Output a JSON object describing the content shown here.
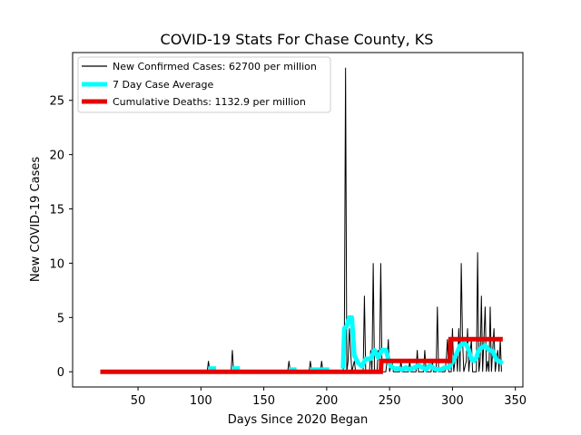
{
  "chart_data": {
    "type": "line",
    "title": "COVID-19 Stats For Chase County, KS",
    "xlabel": "Days Since 2020 Began",
    "ylabel": "New COVID-19 Cases",
    "xlim": [
      -2,
      356
    ],
    "ylim": [
      -1.4,
      29.4
    ],
    "xticks": [
      50,
      100,
      150,
      200,
      250,
      300,
      350
    ],
    "yticks": [
      0,
      5,
      10,
      15,
      20,
      25
    ],
    "grid": false,
    "legend_position": "top-left",
    "series": [
      {
        "name": "New Confirmed Cases: 62700 per million",
        "color": "#000000",
        "style": "thin",
        "points": [
          [
            20,
            0
          ],
          [
            105,
            0
          ],
          [
            106,
            1
          ],
          [
            107,
            0
          ],
          [
            124,
            0
          ],
          [
            125,
            2
          ],
          [
            126,
            0
          ],
          [
            169,
            0
          ],
          [
            170,
            1
          ],
          [
            171,
            0
          ],
          [
            186,
            0
          ],
          [
            187,
            1
          ],
          [
            188,
            0
          ],
          [
            195,
            0
          ],
          [
            196,
            1
          ],
          [
            197,
            0
          ],
          [
            213,
            0
          ],
          [
            214,
            2
          ],
          [
            215,
            28
          ],
          [
            216,
            0
          ],
          [
            217,
            1
          ],
          [
            218,
            4
          ],
          [
            219,
            2
          ],
          [
            220,
            0
          ],
          [
            222,
            1
          ],
          [
            223,
            0
          ],
          [
            229,
            0
          ],
          [
            230,
            7
          ],
          [
            231,
            0
          ],
          [
            234,
            0
          ],
          [
            235,
            2
          ],
          [
            236,
            0
          ],
          [
            237,
            10
          ],
          [
            238,
            0
          ],
          [
            240,
            0
          ],
          [
            241,
            2
          ],
          [
            242,
            1
          ],
          [
            243,
            10
          ],
          [
            244,
            0
          ],
          [
            247,
            0
          ],
          [
            248,
            1
          ],
          [
            249,
            3
          ],
          [
            250,
            0
          ],
          [
            252,
            1
          ],
          [
            253,
            0
          ],
          [
            258,
            0
          ],
          [
            259,
            1
          ],
          [
            260,
            0
          ],
          [
            265,
            0
          ],
          [
            266,
            1
          ],
          [
            267,
            0
          ],
          [
            271,
            0
          ],
          [
            272,
            2
          ],
          [
            273,
            0
          ],
          [
            277,
            0
          ],
          [
            278,
            2
          ],
          [
            279,
            0
          ],
          [
            283,
            0
          ],
          [
            284,
            1
          ],
          [
            285,
            0
          ],
          [
            287,
            0
          ],
          [
            288,
            6
          ],
          [
            289,
            0
          ],
          [
            294,
            0
          ],
          [
            295,
            1
          ],
          [
            296,
            3
          ],
          [
            297,
            0
          ],
          [
            299,
            0
          ],
          [
            300,
            4
          ],
          [
            301,
            0
          ],
          [
            303,
            2
          ],
          [
            304,
            0
          ],
          [
            305,
            4
          ],
          [
            306,
            0
          ],
          [
            307,
            10
          ],
          [
            308,
            3
          ],
          [
            309,
            0
          ],
          [
            311,
            1
          ],
          [
            312,
            4
          ],
          [
            313,
            0
          ],
          [
            315,
            3
          ],
          [
            316,
            0
          ],
          [
            319,
            0
          ],
          [
            320,
            11
          ],
          [
            321,
            0
          ],
          [
            322,
            1
          ],
          [
            323,
            7
          ],
          [
            324,
            0
          ],
          [
            326,
            6
          ],
          [
            327,
            0
          ],
          [
            328,
            1
          ],
          [
            329,
            0
          ],
          [
            330,
            6
          ],
          [
            331,
            0
          ],
          [
            333,
            4
          ],
          [
            334,
            0
          ],
          [
            336,
            2
          ],
          [
            337,
            0
          ],
          [
            338,
            3
          ],
          [
            339,
            0
          ]
        ]
      },
      {
        "name": "7 Day Case Average",
        "color": "#00ffff",
        "style": "thick",
        "segments": [
          [
            [
              106,
              0.3
            ],
            [
              112,
              0.3
            ]
          ],
          [
            [
              125,
              0.3
            ],
            [
              131,
              0.3
            ]
          ],
          [
            [
              170,
              0.2
            ],
            [
              176,
              0.2
            ]
          ],
          [
            [
              187,
              0.2
            ],
            [
              202,
              0.2
            ]
          ],
          [
            [
              213,
              0.3
            ],
            [
              214,
              4
            ],
            [
              216,
              4.2
            ],
            [
              218,
              5
            ],
            [
              220,
              5
            ],
            [
              222,
              1.5
            ],
            [
              225,
              0.8
            ],
            [
              228,
              0.5
            ],
            [
              231,
              1.2
            ],
            [
              235,
              1.2
            ],
            [
              238,
              2
            ],
            [
              241,
              1.3
            ],
            [
              244,
              2
            ],
            [
              247,
              2
            ],
            [
              249,
              1.2
            ],
            [
              251,
              0.5
            ],
            [
              254,
              0.3
            ],
            [
              257,
              0.3
            ],
            [
              260,
              0.2
            ],
            [
              263,
              0.4
            ],
            [
              266,
              0.2
            ],
            [
              270,
              0.4
            ],
            [
              273,
              0.6
            ],
            [
              276,
              0.4
            ],
            [
              279,
              0.2
            ],
            [
              282,
              0.6
            ],
            [
              285,
              0.3
            ],
            [
              288,
              0.2
            ],
            [
              291,
              0.2
            ],
            [
              294,
              0.4
            ],
            [
              297,
              0.4
            ],
            [
              300,
              0.9
            ],
            [
              303,
              1.6
            ],
            [
              306,
              2.4
            ],
            [
              309,
              2.6
            ],
            [
              311,
              2.5
            ],
            [
              313,
              2
            ],
            [
              315,
              1.2
            ],
            [
              317,
              1
            ],
            [
              319,
              1.3
            ],
            [
              321,
              2
            ],
            [
              323,
              2.2
            ],
            [
              326,
              2.4
            ],
            [
              329,
              2
            ],
            [
              332,
              1.9
            ],
            [
              335,
              1.1
            ],
            [
              338,
              0.9
            ],
            [
              340,
              0.8
            ]
          ]
        ]
      },
      {
        "name": "Cumulative Deaths: 1132.9 per million",
        "color": "#e60000",
        "style": "thick",
        "points": [
          [
            20,
            0
          ],
          [
            243,
            0
          ],
          [
            243.5,
            1
          ],
          [
            298,
            1
          ],
          [
            298.5,
            3
          ],
          [
            340,
            3
          ]
        ]
      }
    ]
  }
}
